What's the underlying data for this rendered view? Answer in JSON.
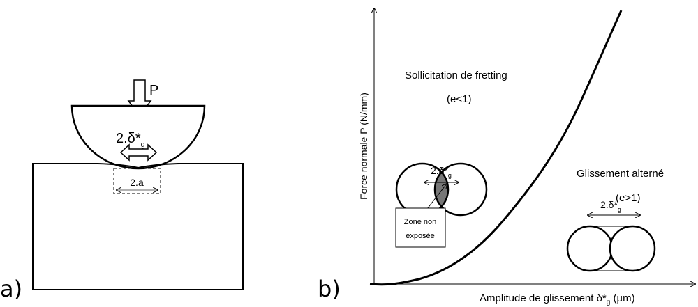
{
  "figure_a": {
    "label": "a)",
    "load": "P",
    "slip": {
      "main": "2.δ*",
      "sub": "g"
    },
    "contact": "2.a"
  },
  "figure_b": {
    "label": "b)",
    "y_axis_label": "Force normale P (N/mm)",
    "x_axis_label": {
      "main": "Amplitude de glissement δ*",
      "sub": "g",
      "unit": " (µm)"
    },
    "fretting": {
      "title": "Sollicitation de fretting",
      "condition": "(e<1)",
      "slip": {
        "main": "2.δ*",
        "sub": "g"
      },
      "note": [
        "Zone non",
        "exposée"
      ]
    },
    "sliding": {
      "title": "Glissement alterné",
      "condition": "(e>1)",
      "slip": {
        "main": "2.δ*",
        "sub": "g"
      }
    }
  }
}
